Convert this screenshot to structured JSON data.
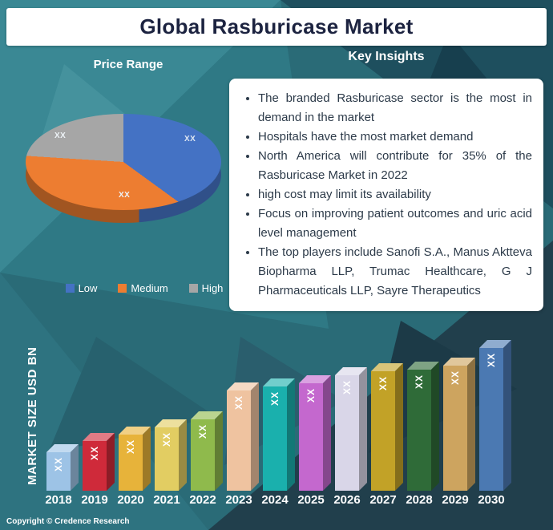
{
  "title": "Global Rasburicase Market",
  "copyright": "Copyright © Credence Research",
  "theme": {
    "background_teal": "#2a6b77",
    "panel_white": "#ffffff",
    "title_text": "#1c2340",
    "body_text": "#2c3a49"
  },
  "insights": {
    "title": "Key Insights",
    "bullets": [
      "The branded Rasburicase sector is the most in demand in the market",
      "Hospitals have the most market demand",
      "North America will contribute for 35% of the Rasburicase Market in 2022",
      "high cost may limit its availability",
      "Focus on improving patient outcomes and uric acid level management",
      "The top players include Sanofi S.A., Manus Aktteva Biopharma LLP, Trumac Healthcare, G J Pharmaceuticals LLP, Sayre Therapeutics"
    ]
  },
  "chart_data": [
    {
      "type": "pie",
      "style": "3d",
      "title": "Price Range",
      "labels": [
        "Low",
        "Medium",
        "High"
      ],
      "data_labels": [
        "XX",
        "XX",
        "XX"
      ],
      "values_pct_estimated": [
        35,
        41,
        24
      ],
      "colors": [
        "#4472c4",
        "#ed7d31",
        "#a6a6a6"
      ],
      "legend_position": "bottom"
    },
    {
      "type": "bar",
      "style": "3d",
      "ylabel": "MARKET SIZE USD BN",
      "xlabel": "",
      "categories": [
        "2018",
        "2019",
        "2020",
        "2021",
        "2022",
        "2023",
        "2024",
        "2025",
        "2026",
        "2027",
        "2028",
        "2029",
        "2030"
      ],
      "data_labels": [
        "XX",
        "XX",
        "XX",
        "XX",
        "XX",
        "XX",
        "XX",
        "XX",
        "XX",
        "XX",
        "XX",
        "XX",
        "XX"
      ],
      "values_relative_estimated": [
        1.0,
        1.3,
        1.45,
        1.65,
        1.85,
        2.6,
        2.7,
        2.8,
        3.0,
        3.1,
        3.15,
        3.25,
        3.7
      ],
      "colors": [
        "#9dc3e6",
        "#cf2a3a",
        "#e7b33a",
        "#e2cd62",
        "#8fba4c",
        "#efc3a0",
        "#1ab0ad",
        "#c468ce",
        "#d9d6e8",
        "#c2a227",
        "#2f6b38",
        "#cda45f",
        "#4b79b2"
      ]
    }
  ]
}
